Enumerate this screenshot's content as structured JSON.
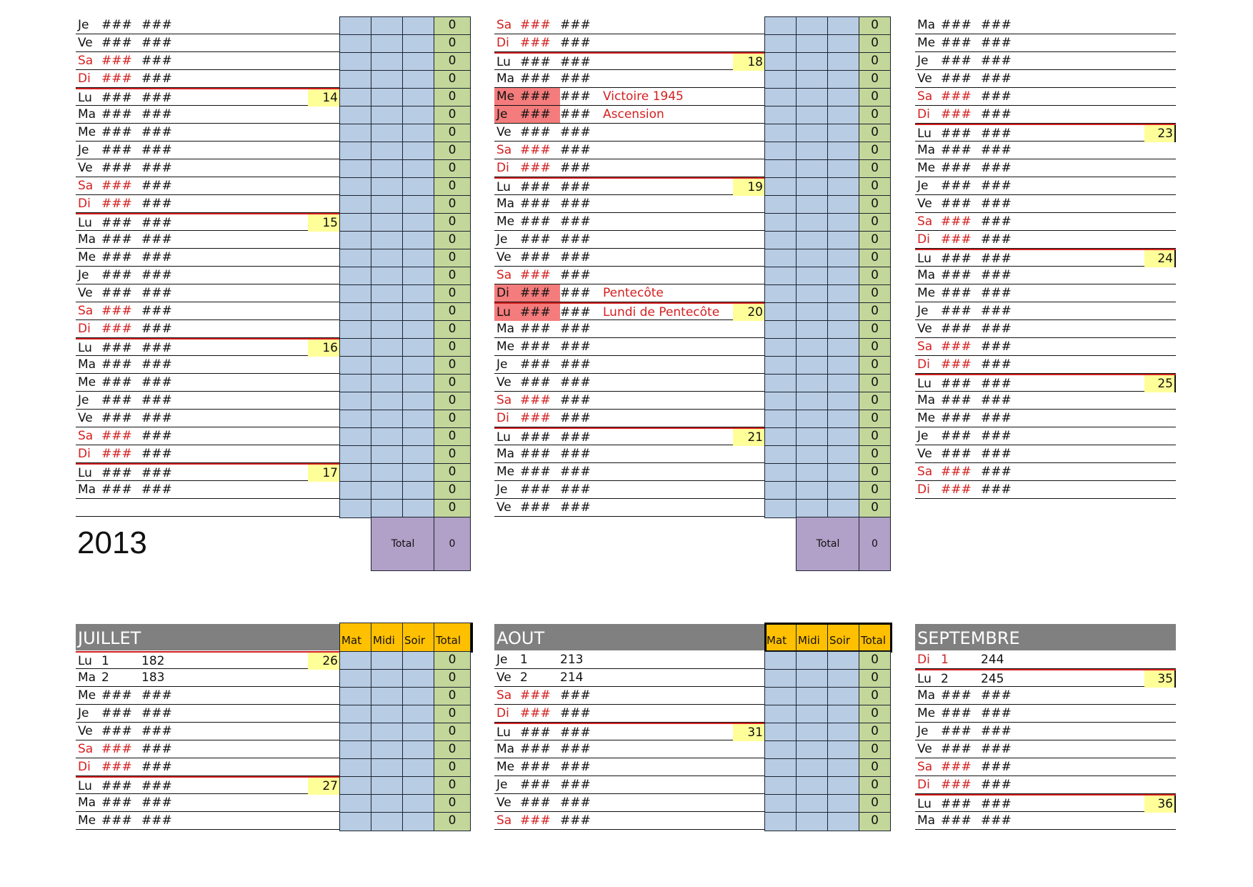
{
  "year": "2013",
  "top_section": {
    "col1": {
      "rows": [
        {
          "day": "Je",
          "num": "###",
          "doy": "###"
        },
        {
          "day": "Ve",
          "num": "###",
          "doy": "###"
        },
        {
          "day": "Sa",
          "num": "###",
          "doy": "###",
          "weekend": true
        },
        {
          "day": "Di",
          "num": "###",
          "doy": "###",
          "weekend": true
        },
        {
          "day": "Lu",
          "num": "###",
          "doy": "###",
          "week": "14"
        },
        {
          "day": "Ma",
          "num": "###",
          "doy": "###"
        },
        {
          "day": "Me",
          "num": "###",
          "doy": "###"
        },
        {
          "day": "Je",
          "num": "###",
          "doy": "###"
        },
        {
          "day": "Ve",
          "num": "###",
          "doy": "###"
        },
        {
          "day": "Sa",
          "num": "###",
          "doy": "###",
          "weekend": true
        },
        {
          "day": "Di",
          "num": "###",
          "doy": "###",
          "weekend": true
        },
        {
          "day": "Lu",
          "num": "###",
          "doy": "###",
          "week": "15"
        },
        {
          "day": "Ma",
          "num": "###",
          "doy": "###"
        },
        {
          "day": "Me",
          "num": "###",
          "doy": "###"
        },
        {
          "day": "Je",
          "num": "###",
          "doy": "###"
        },
        {
          "day": "Ve",
          "num": "###",
          "doy": "###"
        },
        {
          "day": "Sa",
          "num": "###",
          "doy": "###",
          "weekend": true
        },
        {
          "day": "Di",
          "num": "###",
          "doy": "###",
          "weekend": true
        },
        {
          "day": "Lu",
          "num": "###",
          "doy": "###",
          "week": "16"
        },
        {
          "day": "Ma",
          "num": "###",
          "doy": "###"
        },
        {
          "day": "Me",
          "num": "###",
          "doy": "###"
        },
        {
          "day": "Je",
          "num": "###",
          "doy": "###"
        },
        {
          "day": "Ve",
          "num": "###",
          "doy": "###"
        },
        {
          "day": "Sa",
          "num": "###",
          "doy": "###",
          "weekend": true
        },
        {
          "day": "Di",
          "num": "###",
          "doy": "###",
          "weekend": true
        },
        {
          "day": "Lu",
          "num": "###",
          "doy": "###",
          "week": "17"
        },
        {
          "day": "Ma",
          "num": "###",
          "doy": "###"
        },
        {
          "day": "",
          "num": "",
          "doy": "",
          "empty": true
        }
      ],
      "totals": [
        "0",
        "0",
        "0",
        "0",
        "0",
        "0",
        "0",
        "0",
        "0",
        "0",
        "0",
        "0",
        "0",
        "0",
        "0",
        "0",
        "0",
        "0",
        "0",
        "0",
        "0",
        "0",
        "0",
        "0",
        "0",
        "0",
        "0",
        "0"
      ],
      "grand_total_label": "Total",
      "grand_total_value": "0"
    },
    "col2": {
      "rows": [
        {
          "day": "Sa",
          "num": "###",
          "doy": "###",
          "weekend": true
        },
        {
          "day": "Di",
          "num": "###",
          "doy": "###",
          "weekend": true
        },
        {
          "day": "Lu",
          "num": "###",
          "doy": "###",
          "week": "18"
        },
        {
          "day": "Ma",
          "num": "###",
          "doy": "###"
        },
        {
          "day": "Me",
          "num": "###",
          "doy": "###",
          "holiday": "Victoire 1945"
        },
        {
          "day": "Je",
          "num": "###",
          "doy": "###",
          "holiday": "Ascension"
        },
        {
          "day": "Ve",
          "num": "###",
          "doy": "###"
        },
        {
          "day": "Sa",
          "num": "###",
          "doy": "###",
          "weekend": true
        },
        {
          "day": "Di",
          "num": "###",
          "doy": "###",
          "weekend": true
        },
        {
          "day": "Lu",
          "num": "###",
          "doy": "###",
          "week": "19"
        },
        {
          "day": "Ma",
          "num": "###",
          "doy": "###"
        },
        {
          "day": "Me",
          "num": "###",
          "doy": "###"
        },
        {
          "day": "Je",
          "num": "###",
          "doy": "###"
        },
        {
          "day": "Ve",
          "num": "###",
          "doy": "###"
        },
        {
          "day": "Sa",
          "num": "###",
          "doy": "###",
          "weekend": true
        },
        {
          "day": "Di",
          "num": "###",
          "doy": "###",
          "holiday": "Pentecôte"
        },
        {
          "day": "Lu",
          "num": "###",
          "doy": "###",
          "holiday": "Lundi de Pentecôte",
          "week": "20"
        },
        {
          "day": "Ma",
          "num": "###",
          "doy": "###"
        },
        {
          "day": "Me",
          "num": "###",
          "doy": "###"
        },
        {
          "day": "Je",
          "num": "###",
          "doy": "###"
        },
        {
          "day": "Ve",
          "num": "###",
          "doy": "###"
        },
        {
          "day": "Sa",
          "num": "###",
          "doy": "###",
          "weekend": true
        },
        {
          "day": "Di",
          "num": "###",
          "doy": "###",
          "weekend": true
        },
        {
          "day": "Lu",
          "num": "###",
          "doy": "###",
          "week": "21"
        },
        {
          "day": "Ma",
          "num": "###",
          "doy": "###"
        },
        {
          "day": "Me",
          "num": "###",
          "doy": "###"
        },
        {
          "day": "Je",
          "num": "###",
          "doy": "###"
        },
        {
          "day": "Ve",
          "num": "###",
          "doy": "###"
        }
      ],
      "totals": [
        "0",
        "0",
        "0",
        "0",
        "0",
        "0",
        "0",
        "0",
        "0",
        "0",
        "0",
        "0",
        "0",
        "0",
        "0",
        "0",
        "0",
        "0",
        "0",
        "0",
        "0",
        "0",
        "0",
        "0",
        "0",
        "0",
        "0",
        "0"
      ],
      "grand_total_label": "Total",
      "grand_total_value": "0"
    },
    "col3": {
      "rows": [
        {
          "day": "Ma",
          "num": "###",
          "doy": "###"
        },
        {
          "day": "Me",
          "num": "###",
          "doy": "###"
        },
        {
          "day": "Je",
          "num": "###",
          "doy": "###"
        },
        {
          "day": "Ve",
          "num": "###",
          "doy": "###"
        },
        {
          "day": "Sa",
          "num": "###",
          "doy": "###",
          "weekend": true
        },
        {
          "day": "Di",
          "num": "###",
          "doy": "###",
          "weekend": true
        },
        {
          "day": "Lu",
          "num": "###",
          "doy": "###",
          "week": "23"
        },
        {
          "day": "Ma",
          "num": "###",
          "doy": "###"
        },
        {
          "day": "Me",
          "num": "###",
          "doy": "###"
        },
        {
          "day": "Je",
          "num": "###",
          "doy": "###"
        },
        {
          "day": "Ve",
          "num": "###",
          "doy": "###"
        },
        {
          "day": "Sa",
          "num": "###",
          "doy": "###",
          "weekend": true
        },
        {
          "day": "Di",
          "num": "###",
          "doy": "###",
          "weekend": true
        },
        {
          "day": "Lu",
          "num": "###",
          "doy": "###",
          "week": "24"
        },
        {
          "day": "Ma",
          "num": "###",
          "doy": "###"
        },
        {
          "day": "Me",
          "num": "###",
          "doy": "###"
        },
        {
          "day": "Je",
          "num": "###",
          "doy": "###"
        },
        {
          "day": "Ve",
          "num": "###",
          "doy": "###"
        },
        {
          "day": "Sa",
          "num": "###",
          "doy": "###",
          "weekend": true
        },
        {
          "day": "Di",
          "num": "###",
          "doy": "###",
          "weekend": true
        },
        {
          "day": "Lu",
          "num": "###",
          "doy": "###",
          "week": "25"
        },
        {
          "day": "Ma",
          "num": "###",
          "doy": "###"
        },
        {
          "day": "Me",
          "num": "###",
          "doy": "###"
        },
        {
          "day": "Je",
          "num": "###",
          "doy": "###"
        },
        {
          "day": "Ve",
          "num": "###",
          "doy": "###"
        },
        {
          "day": "Sa",
          "num": "###",
          "doy": "###",
          "weekend": true
        },
        {
          "day": "Di",
          "num": "###",
          "doy": "###",
          "weekend": true
        }
      ]
    }
  },
  "bottom_section": {
    "headers": {
      "mat": "Mat",
      "midi": "Midi",
      "soir": "Soir",
      "total": "Total"
    },
    "juillet": {
      "title": "JUILLET",
      "rows": [
        {
          "day": "Lu",
          "num": "1",
          "doy": "182",
          "week": "26"
        },
        {
          "day": "Ma",
          "num": "2",
          "doy": "183"
        },
        {
          "day": "Me",
          "num": "###",
          "doy": "###"
        },
        {
          "day": "Je",
          "num": "###",
          "doy": "###"
        },
        {
          "day": "Ve",
          "num": "###",
          "doy": "###"
        },
        {
          "day": "Sa",
          "num": "###",
          "doy": "###",
          "weekend": true
        },
        {
          "day": "Di",
          "num": "###",
          "doy": "###",
          "weekend": true
        },
        {
          "day": "Lu",
          "num": "###",
          "doy": "###",
          "week": "27"
        },
        {
          "day": "Ma",
          "num": "###",
          "doy": "###"
        },
        {
          "day": "Me",
          "num": "###",
          "doy": "###"
        }
      ],
      "totals": [
        "0",
        "0",
        "0",
        "0",
        "0",
        "0",
        "0",
        "0",
        "0",
        "0"
      ]
    },
    "aout": {
      "title": "AOUT",
      "rows": [
        {
          "day": "Je",
          "num": "1",
          "doy": "213"
        },
        {
          "day": "Ve",
          "num": "2",
          "doy": "214"
        },
        {
          "day": "Sa",
          "num": "###",
          "doy": "###",
          "weekend": true
        },
        {
          "day": "Di",
          "num": "###",
          "doy": "###",
          "weekend": true
        },
        {
          "day": "Lu",
          "num": "###",
          "doy": "###",
          "week": "31"
        },
        {
          "day": "Ma",
          "num": "###",
          "doy": "###"
        },
        {
          "day": "Me",
          "num": "###",
          "doy": "###"
        },
        {
          "day": "Je",
          "num": "###",
          "doy": "###"
        },
        {
          "day": "Ve",
          "num": "###",
          "doy": "###"
        },
        {
          "day": "Sa",
          "num": "###",
          "doy": "###",
          "weekend": true
        }
      ],
      "totals": [
        "0",
        "0",
        "0",
        "0",
        "0",
        "0",
        "0",
        "0",
        "0",
        "0"
      ]
    },
    "septembre": {
      "title": "SEPTEMBRE",
      "rows": [
        {
          "day": "Di",
          "num": "1",
          "doy": "244",
          "weekend": true
        },
        {
          "day": "Lu",
          "num": "2",
          "doy": "245",
          "week": "35"
        },
        {
          "day": "Ma",
          "num": "###",
          "doy": "###"
        },
        {
          "day": "Me",
          "num": "###",
          "doy": "###"
        },
        {
          "day": "Je",
          "num": "###",
          "doy": "###"
        },
        {
          "day": "Ve",
          "num": "###",
          "doy": "###"
        },
        {
          "day": "Sa",
          "num": "###",
          "doy": "###",
          "weekend": true
        },
        {
          "day": "Di",
          "num": "###",
          "doy": "###",
          "weekend": true
        },
        {
          "day": "Lu",
          "num": "###",
          "doy": "###",
          "week": "36"
        },
        {
          "day": "Ma",
          "num": "###",
          "doy": "###"
        }
      ]
    }
  },
  "colors": {
    "weekend_red": "#d42020",
    "holiday_fill": "#f47c7c",
    "week_yellow": "#ffff99",
    "slot_blue": "#b8cce4",
    "total_green": "#c4d79b",
    "grand_total_purple": "#b1a0c7",
    "header_orange": "#ffc000",
    "month_gray": "#808080"
  }
}
